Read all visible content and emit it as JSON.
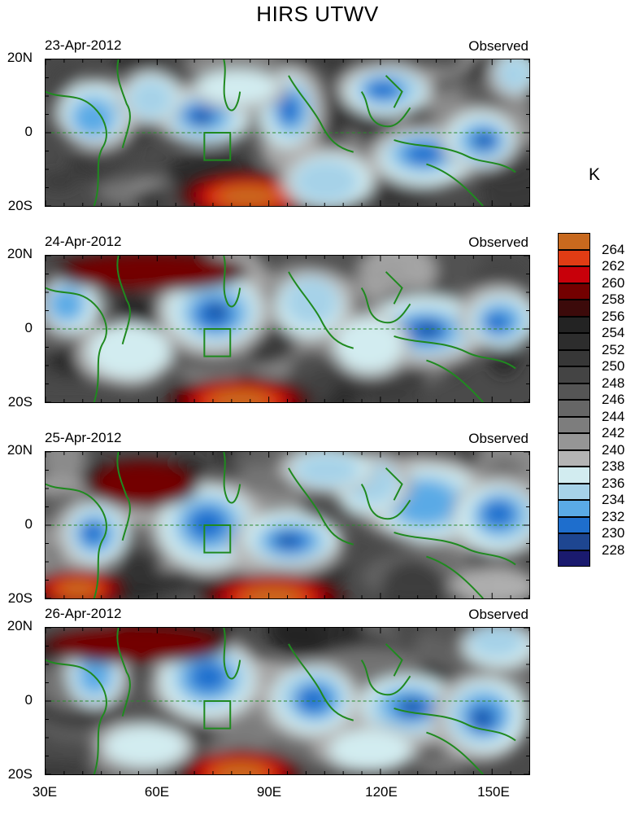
{
  "title": "HIRS UTWV",
  "unit": "K",
  "panels": [
    {
      "date": "23-Apr-2012",
      "label": "Observed"
    },
    {
      "date": "24-Apr-2012",
      "label": "Observed"
    },
    {
      "date": "25-Apr-2012",
      "label": "Observed"
    },
    {
      "date": "26-Apr-2012",
      "label": "Observed"
    }
  ],
  "y_ticks": [
    "20N",
    "0",
    "20S"
  ],
  "x_ticks": [
    "30E",
    "60E",
    "90E",
    "120E",
    "150E"
  ],
  "colorbar": {
    "levels": [
      "264",
      "262",
      "260",
      "258",
      "256",
      "254",
      "252",
      "250",
      "248",
      "246",
      "244",
      "242",
      "240",
      "238",
      "236",
      "234",
      "232",
      "230",
      "228"
    ],
    "colors": [
      "#c8691e",
      "#e03c14",
      "#c8000a",
      "#730000",
      "#3c0a0a",
      "#232323",
      "#2d2d2d",
      "#373737",
      "#444444",
      "#555555",
      "#666666",
      "#7d7d7d",
      "#969696",
      "#b4b4b4",
      "#d2ecf0",
      "#a6d2e8",
      "#5aaae6",
      "#1e6ecd",
      "#1e4691",
      "#1a1a6e"
    ]
  },
  "chart_data": {
    "type": "heatmap",
    "title": "HIRS UTWV",
    "xlabel": "",
    "ylabel": "",
    "xlim": [
      30,
      160
    ],
    "ylim": [
      -20,
      20
    ],
    "x_tick_labels": [
      "30E",
      "60E",
      "90E",
      "120E",
      "150E"
    ],
    "y_tick_labels": [
      "20N",
      "0",
      "20S"
    ],
    "colorbar_unit": "K",
    "colorbar_range": [
      228,
      264
    ]
  }
}
